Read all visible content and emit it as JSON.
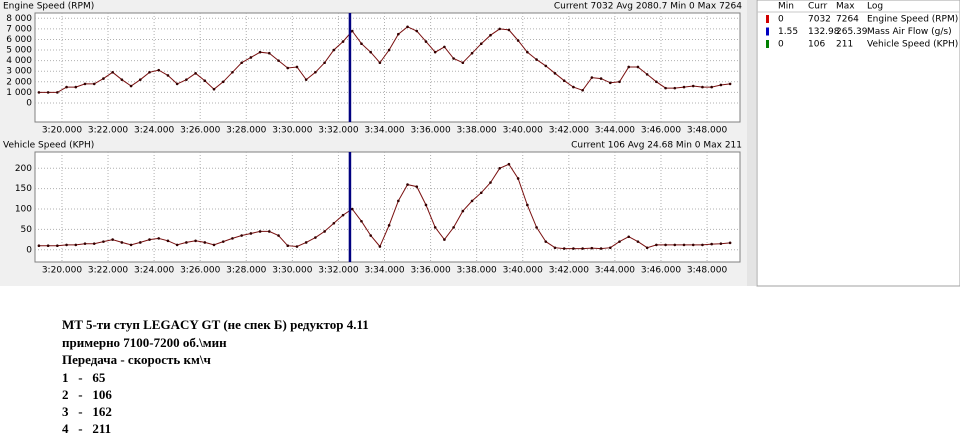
{
  "chart_data": [
    {
      "type": "line",
      "title": "Engine Speed (RPM)",
      "status": "Current 7032 Avg 2080.7 Min 0 Max 7264",
      "x": [
        199.0,
        199.4,
        199.8,
        200.2,
        200.6,
        201.0,
        201.4,
        201.8,
        202.2,
        202.6,
        203.0,
        203.4,
        203.8,
        204.2,
        204.6,
        205.0,
        205.4,
        205.8,
        206.2,
        206.6,
        207.0,
        207.4,
        207.8,
        208.2,
        208.6,
        209.0,
        209.4,
        209.8,
        210.2,
        210.6,
        211.0,
        211.4,
        211.8,
        212.2,
        212.6,
        213.0,
        213.4,
        213.8,
        214.2,
        214.6,
        215.0,
        215.4,
        215.8,
        216.2,
        216.6,
        217.0,
        217.4,
        217.8,
        218.2,
        218.6,
        219.0,
        219.4,
        219.8,
        220.2,
        220.6,
        221.0,
        221.4,
        221.8,
        222.2,
        222.6,
        223.0,
        223.4,
        223.8,
        224.2,
        224.6,
        225.0,
        225.4,
        225.8,
        226.2,
        226.6,
        227.0,
        227.4,
        227.8,
        228.2,
        228.6,
        229.0
      ],
      "values": [
        1000,
        1000,
        1000,
        1500,
        1500,
        1800,
        1800,
        2300,
        2900,
        2200,
        1600,
        2200,
        2900,
        3100,
        2600,
        1800,
        2200,
        2800,
        2100,
        1300,
        2000,
        2900,
        3800,
        4300,
        4800,
        4700,
        4000,
        3300,
        3400,
        2200,
        2900,
        3800,
        5000,
        5800,
        6800,
        5600,
        4800,
        3800,
        5000,
        6500,
        7200,
        6800,
        5800,
        4800,
        5300,
        4200,
        3800,
        4700,
        5600,
        6400,
        7000,
        6900,
        5900,
        4800,
        4100,
        3500,
        2800,
        2100,
        1500,
        1200,
        2400,
        2300,
        1900,
        2000,
        3400,
        3400,
        2700,
        2000,
        1400,
        1400,
        1500,
        1600,
        1500,
        1500,
        1700,
        1800
      ],
      "color": "#7a1010",
      "xlim": [
        198.83,
        229.43
      ],
      "xticks": [
        {
          "value": 200,
          "label": "3:20.000"
        },
        {
          "value": 202,
          "label": "3:22.000"
        },
        {
          "value": 204,
          "label": "3:24.000"
        },
        {
          "value": 206,
          "label": "3:26.000"
        },
        {
          "value": 208,
          "label": "3:28.000"
        },
        {
          "value": 210,
          "label": "3:30.000"
        },
        {
          "value": 212,
          "label": "3:32.000"
        },
        {
          "value": 214,
          "label": "3:34.000"
        },
        {
          "value": 216,
          "label": "3:36.000"
        },
        {
          "value": 218,
          "label": "3:38.000"
        },
        {
          "value": 220,
          "label": "3:40.000"
        },
        {
          "value": 222,
          "label": "3:42.000"
        },
        {
          "value": 224,
          "label": "3:44.000"
        },
        {
          "value": 226,
          "label": "3:46.000"
        },
        {
          "value": 228,
          "label": "3:48.000"
        }
      ],
      "ylim": [
        -1800,
        8500
      ],
      "yticks": [
        0,
        {
          "value": 1000,
          "label": "1 000"
        },
        {
          "value": 2000,
          "label": "2 000"
        },
        {
          "value": 3000,
          "label": "3 000"
        },
        {
          "value": 4000,
          "label": "4 000"
        },
        {
          "value": 5000,
          "label": "5 000"
        },
        {
          "value": 6000,
          "label": "6 000"
        },
        {
          "value": 7000,
          "label": "7 000"
        },
        {
          "value": 8000,
          "label": "8 000"
        }
      ],
      "grid": true,
      "cursor": 212.5
    },
    {
      "type": "line",
      "title": "Vehicle Speed (KPH)",
      "status": "Current 106 Avg 24.68 Min 0 Max 211",
      "x": [
        199.0,
        199.4,
        199.8,
        200.2,
        200.6,
        201.0,
        201.4,
        201.8,
        202.2,
        202.6,
        203.0,
        203.4,
        203.8,
        204.2,
        204.6,
        205.0,
        205.4,
        205.8,
        206.2,
        206.6,
        207.0,
        207.4,
        207.8,
        208.2,
        208.6,
        209.0,
        209.4,
        209.8,
        210.2,
        210.6,
        211.0,
        211.4,
        211.8,
        212.2,
        212.6,
        213.0,
        213.4,
        213.8,
        214.2,
        214.6,
        215.0,
        215.4,
        215.8,
        216.2,
        216.6,
        217.0,
        217.4,
        217.8,
        218.2,
        218.6,
        219.0,
        219.4,
        219.8,
        220.2,
        220.6,
        221.0,
        221.4,
        221.8,
        222.2,
        222.6,
        223.0,
        223.4,
        223.8,
        224.2,
        224.6,
        225.0,
        225.4,
        225.8,
        226.2,
        226.6,
        227.0,
        227.4,
        227.8,
        228.2,
        228.6,
        229.0
      ],
      "values": [
        10,
        10,
        10,
        12,
        12,
        15,
        15,
        20,
        25,
        18,
        12,
        18,
        25,
        28,
        22,
        12,
        18,
        22,
        18,
        12,
        20,
        28,
        35,
        40,
        45,
        45,
        35,
        10,
        8,
        18,
        30,
        45,
        65,
        85,
        100,
        70,
        35,
        8,
        60,
        120,
        160,
        155,
        110,
        55,
        25,
        55,
        95,
        120,
        140,
        165,
        200,
        210,
        175,
        110,
        55,
        20,
        5,
        3,
        3,
        3,
        4,
        3,
        5,
        20,
        32,
        20,
        5,
        12,
        12,
        12,
        12,
        12,
        12,
        14,
        15,
        17
      ],
      "color": "#7a1010",
      "xlim": [
        198.83,
        229.43
      ],
      "xticks": [
        {
          "value": 200,
          "label": "3:20.000"
        },
        {
          "value": 202,
          "label": "3:22.000"
        },
        {
          "value": 204,
          "label": "3:24.000"
        },
        {
          "value": 206,
          "label": "3:26.000"
        },
        {
          "value": 208,
          "label": "3:28.000"
        },
        {
          "value": 210,
          "label": "3:30.000"
        },
        {
          "value": 212,
          "label": "3:32.000"
        },
        {
          "value": 214,
          "label": "3:34.000"
        },
        {
          "value": 216,
          "label": "3:36.000"
        },
        {
          "value": 218,
          "label": "3:38.000"
        },
        {
          "value": 220,
          "label": "3:40.000"
        },
        {
          "value": 222,
          "label": "3:42.000"
        },
        {
          "value": 224,
          "label": "3:44.000"
        },
        {
          "value": 226,
          "label": "3:46.000"
        },
        {
          "value": 228,
          "label": "3:48.000"
        }
      ],
      "ylim": [
        -30,
        240
      ],
      "yticks": [
        0,
        50,
        100,
        150,
        200
      ],
      "grid": true,
      "cursor": 212.5
    }
  ],
  "panel": {
    "columns": [
      "Min",
      "Curr",
      "Max",
      "Log"
    ],
    "rows": [
      {
        "color": "#d00000",
        "cells": [
          0,
          7032,
          7264,
          "Engine Speed (RPM)"
        ]
      },
      {
        "color": "#0000c0",
        "cells": [
          1.55,
          132.98,
          265.39,
          "Mass Air Flow (g/s)"
        ]
      },
      {
        "color": "#008000",
        "cells": [
          0,
          106,
          211,
          "Vehicle Speed (KPH)"
        ]
      }
    ]
  },
  "notes": [
    "MT 5-ти ступ LEGACY GT (не спек Б) редуктор 4.11",
    "примерно 7100-7200 об.\\мин",
    "Передача - скорость км\\ч",
    "1   -   65",
    "2   -   106",
    "3   -   162",
    "4   -   211"
  ]
}
